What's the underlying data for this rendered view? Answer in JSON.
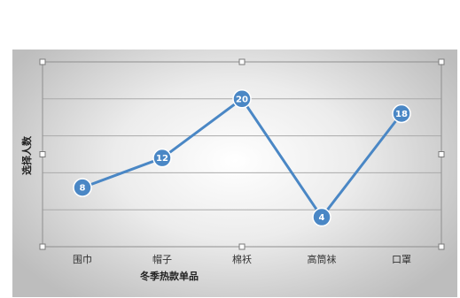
{
  "chart_data": {
    "type": "line",
    "categories": [
      "围巾",
      "帽子",
      "棉袄",
      "高筒袜",
      "口罩"
    ],
    "values": [
      8,
      12,
      20,
      4,
      18
    ],
    "xlabel": "冬季热款单品",
    "ylabel": "选择人数",
    "ylim": [
      0,
      25
    ],
    "grid": true,
    "legend": "none",
    "show_data_labels": true,
    "colors": {
      "line": "#4a87c5",
      "marker": "#4a87c5",
      "grid": "#aaaaaa"
    }
  }
}
